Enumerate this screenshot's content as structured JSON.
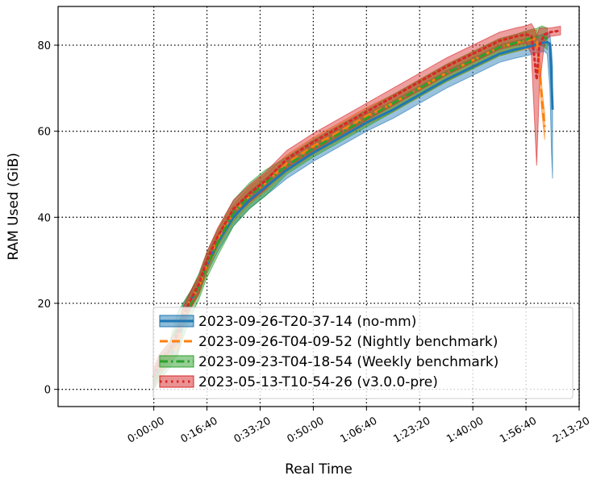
{
  "chart_data": {
    "type": "line",
    "title": "",
    "xlabel": "Real Time",
    "ylabel": "RAM Used (GiB)",
    "xlim": [
      -1800,
      8000
    ],
    "ylim": [
      -4,
      89
    ],
    "grid": true,
    "legend_placement": "lower-right",
    "x_ticks": [
      {
        "value": 0,
        "label": "0:00:00"
      },
      {
        "value": 1000,
        "label": "0:16:40"
      },
      {
        "value": 2000,
        "label": "0:33:20"
      },
      {
        "value": 3000,
        "label": "0:50:00"
      },
      {
        "value": 4000,
        "label": "1:06:40"
      },
      {
        "value": 5000,
        "label": "1:23:20"
      },
      {
        "value": 6000,
        "label": "1:40:00"
      },
      {
        "value": 7000,
        "label": "1:56:40"
      },
      {
        "value": 8000,
        "label": "2:13:20"
      }
    ],
    "y_ticks": [
      0,
      20,
      40,
      60,
      80
    ],
    "series": [
      {
        "name": "2023-09-26-T20-37-14 (no-mm)",
        "color": "#1f77b4",
        "style": "solid",
        "x": [
          0,
          100,
          300,
          450,
          550,
          700,
          850,
          1000,
          1200,
          1500,
          1800,
          2100,
          2500,
          3000,
          3500,
          4000,
          4500,
          5000,
          5500,
          6000,
          6500,
          6800,
          7000,
          7150,
          7250,
          7300,
          7350,
          7400,
          7450,
          7480,
          7500
        ],
        "y": [
          2,
          5,
          8,
          10,
          17,
          21,
          24,
          29,
          34,
          40,
          44,
          47,
          51,
          55,
          58.5,
          62,
          65,
          68.5,
          72,
          75,
          78,
          79,
          79.5,
          80,
          80.3,
          80.5,
          80.6,
          80.7,
          80.3,
          72,
          65
        ],
        "band_lower": [
          0,
          3,
          6,
          8,
          14,
          19,
          22,
          27,
          32,
          38,
          42,
          45,
          49,
          53,
          56.5,
          60,
          63,
          66.5,
          70,
          73,
          76,
          77,
          77.5,
          78,
          78.3,
          78.5,
          78.5,
          78,
          70,
          55,
          49
        ],
        "band_upper": [
          4,
          7,
          10,
          12,
          20,
          23,
          26,
          31,
          36,
          42,
          46,
          49,
          53,
          57,
          60.5,
          64,
          67,
          70.5,
          74,
          77,
          80,
          81,
          81.5,
          82,
          82.3,
          82.5,
          82.7,
          83,
          82.5,
          79,
          75
        ]
      },
      {
        "name": "2023-09-26-T04-09-52 (Nightly benchmark)",
        "color": "#ff7f0e",
        "style": "dashed",
        "x": [
          0,
          100,
          300,
          450,
          550,
          700,
          850,
          1000,
          1200,
          1500,
          1800,
          2100,
          2500,
          3000,
          3500,
          4000,
          4500,
          5000,
          5500,
          6000,
          6500,
          6800,
          7000,
          7100,
          7200,
          7250,
          7300,
          7350
        ],
        "y": [
          2,
          5,
          8,
          10,
          17,
          21,
          24,
          29,
          35,
          41,
          45,
          48,
          52.5,
          56.5,
          60,
          63.5,
          66.5,
          70,
          73.5,
          76.5,
          79.5,
          80.5,
          81,
          81.4,
          81.6,
          75,
          67,
          61
        ],
        "band_lower": [
          0,
          3,
          6,
          8,
          15,
          19,
          22,
          27,
          33,
          39,
          43,
          46,
          50.5,
          54.5,
          58,
          61.5,
          64.5,
          68,
          71.5,
          74.5,
          77.5,
          78.5,
          79,
          79.4,
          79.6,
          72,
          64,
          58
        ],
        "band_upper": [
          4,
          7,
          10,
          12,
          19,
          23,
          26,
          31,
          37,
          43,
          47,
          50,
          54.5,
          58.5,
          62,
          65.5,
          68.5,
          72,
          75.5,
          78.5,
          81.5,
          82.5,
          83,
          83.4,
          83.6,
          78,
          70,
          64
        ]
      },
      {
        "name": "2023-09-23-T04-18-54 (Weekly benchmark)",
        "color": "#2ca02c",
        "style": "dashdot",
        "x": [
          0,
          100,
          300,
          450,
          550,
          700,
          850,
          1000,
          1200,
          1500,
          1800,
          2100,
          2500,
          3000,
          3500,
          4000,
          4500,
          5000,
          5500,
          6000,
          6500,
          6800,
          7000,
          7100,
          7200,
          7300,
          7400
        ],
        "y": [
          2,
          5,
          8,
          15,
          17,
          20,
          24,
          29,
          34,
          41,
          45,
          48,
          52,
          56,
          59.5,
          63,
          66.5,
          70,
          73.5,
          76.5,
          79.5,
          80.5,
          81.3,
          81.7,
          81.9,
          82,
          81.5
        ],
        "band_lower": [
          0,
          2,
          5,
          8,
          12,
          17,
          21,
          26,
          31,
          38,
          42,
          45,
          50,
          54,
          57.5,
          61,
          64.5,
          68,
          71.5,
          74.5,
          77.5,
          78.5,
          79.3,
          79.7,
          79.9,
          80,
          79
        ],
        "band_upper": [
          4,
          8,
          11,
          18,
          20,
          23,
          27,
          32,
          37,
          44,
          48,
          51,
          54,
          58,
          61.5,
          65,
          68.5,
          72,
          75.5,
          78.5,
          81.5,
          82.5,
          83.3,
          83.7,
          83.9,
          84.5,
          84
        ]
      },
      {
        "name": "2023-05-13-T10-54-26 (v3.0.0-pre)",
        "color": "#d62728",
        "style": "dotted",
        "x": [
          0,
          100,
          300,
          450,
          550,
          700,
          850,
          1000,
          1200,
          1500,
          1800,
          2100,
          2500,
          3000,
          3500,
          4000,
          4500,
          5000,
          5500,
          6000,
          6500,
          6800,
          7000,
          7100,
          7150,
          7200,
          7250,
          7350,
          7450,
          7550,
          7650
        ],
        "y": [
          3,
          6,
          9,
          13,
          17,
          21,
          24.5,
          30,
          35.5,
          42,
          45.5,
          48.5,
          53.5,
          57.5,
          61,
          64.5,
          68,
          71.5,
          75,
          78,
          81,
          82,
          82.5,
          82.2,
          78,
          72,
          80,
          82.5,
          83,
          83.2,
          83.4
        ],
        "band_lower": [
          1,
          4,
          7,
          11,
          15,
          19,
          22.5,
          28,
          33.5,
          40,
          43.5,
          46.5,
          51.5,
          55.5,
          59,
          62.5,
          66,
          69.5,
          73,
          76,
          79,
          80,
          80.5,
          78,
          65,
          52,
          70,
          81,
          82,
          82.2,
          82.4
        ],
        "band_upper": [
          5,
          8,
          11,
          15,
          19,
          23,
          26.5,
          32,
          37.5,
          44,
          47.5,
          50.5,
          55.5,
          59.5,
          63,
          66.5,
          70,
          73.5,
          77,
          80,
          83,
          84,
          84.5,
          85,
          84,
          82,
          84,
          84,
          84,
          84.2,
          84.4
        ]
      }
    ]
  }
}
